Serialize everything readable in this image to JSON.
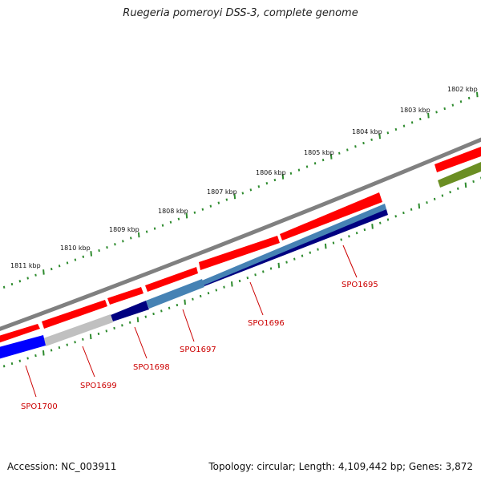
{
  "title": "Ruegeria pomeroyi DSS-3, complete genome",
  "footer": {
    "accession": "Accession: NC_003911",
    "summary": "Topology: circular; Length: 4,109,442 bp; Genes: 3,872"
  },
  "colors": {
    "backbone": "#808080",
    "forward_gene": "#ff0000",
    "tick": "#2e8b2e",
    "label": "#cc0000",
    "label_line": "#cc0000"
  },
  "kbp_labels": [
    "1802 kbp",
    "1803 kbp",
    "1804 kbp",
    "1805 kbp",
    "1806 kbp",
    "1807 kbp",
    "1808 kbp",
    "1809 kbp",
    "1810 kbp",
    "1811 kbp"
  ],
  "genes": [
    {
      "label": "SPO1695",
      "color": "#000080"
    },
    {
      "label": "SPO1696",
      "color": "#4682b4"
    },
    {
      "label": "SPO1697",
      "color": "#4682b4"
    },
    {
      "label": "SPO1698",
      "color": "#000080"
    },
    {
      "label": "SPO1699",
      "color": "#c0c0c0"
    },
    {
      "label": "SPO1700",
      "color": "#0000ff"
    }
  ],
  "other_gene_color": "#6b8e23"
}
